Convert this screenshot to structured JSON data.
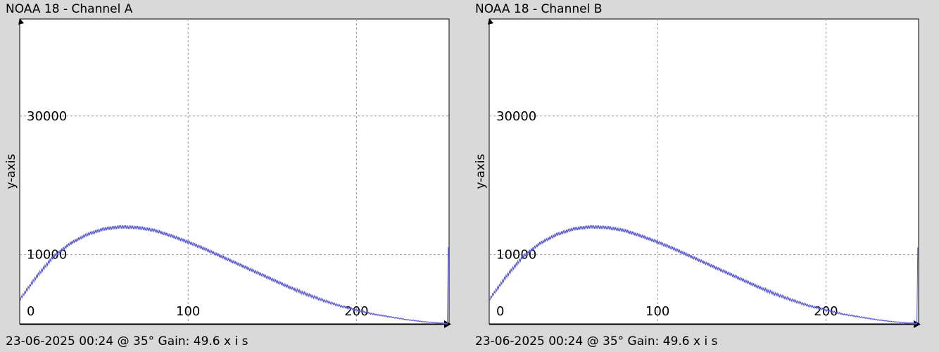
{
  "chart_data": [
    {
      "type": "line",
      "title": "NOAA 18 - Channel A",
      "footer": "23-06-2025 00:24 @ 35° Gain: 49.6",
      "xlabel": "x i s",
      "ylabel": "y-axis",
      "xlim": [
        0,
        255
      ],
      "ylim": [
        0,
        44000
      ],
      "x_ticks": [
        0,
        100,
        200
      ],
      "y_ticks": [
        10000,
        30000
      ],
      "grid": true,
      "line_color": "#5555cc",
      "series": [
        {
          "x": [
            0,
            10,
            20,
            30,
            40,
            50,
            60,
            70,
            80,
            90,
            100,
            110,
            120,
            130,
            140,
            150,
            160,
            170,
            180,
            190,
            200,
            210,
            220,
            230,
            240,
            250,
            254,
            254.5,
            255
          ],
          "y": [
            3500,
            6800,
            9700,
            11600,
            12900,
            13700,
            14000,
            13900,
            13500,
            12700,
            11800,
            10800,
            9700,
            8600,
            7500,
            6400,
            5300,
            4300,
            3400,
            2600,
            2000,
            1400,
            1000,
            600,
            300,
            100,
            0,
            11000,
            11000
          ]
        }
      ]
    },
    {
      "type": "line",
      "title": "NOAA 18 - Channel B",
      "footer": "23-06-2025 00:24 @ 35° Gain: 49.6",
      "xlabel": "x i s",
      "ylabel": "y-axis",
      "xlim": [
        0,
        255
      ],
      "ylim": [
        0,
        44000
      ],
      "x_ticks": [
        0,
        100,
        200
      ],
      "y_ticks": [
        10000,
        30000
      ],
      "grid": true,
      "line_color": "#5555cc",
      "series": [
        {
          "x": [
            0,
            10,
            20,
            30,
            40,
            50,
            60,
            70,
            80,
            90,
            100,
            110,
            120,
            130,
            140,
            150,
            160,
            170,
            180,
            190,
            200,
            210,
            220,
            230,
            240,
            250,
            254,
            254.5,
            255
          ],
          "y": [
            3500,
            6800,
            9700,
            11600,
            12900,
            13700,
            14000,
            13900,
            13500,
            12700,
            11800,
            10800,
            9700,
            8600,
            7500,
            6400,
            5300,
            4300,
            3400,
            2600,
            2000,
            1400,
            1000,
            600,
            300,
            100,
            0,
            11000,
            11000
          ]
        }
      ]
    }
  ]
}
